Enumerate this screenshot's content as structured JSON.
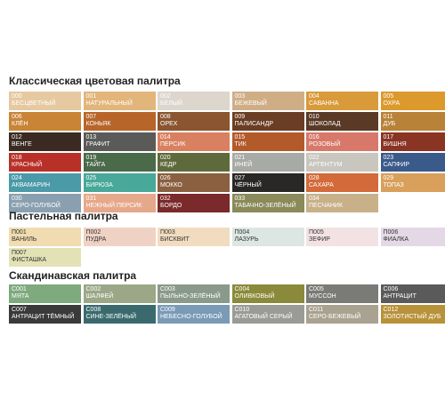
{
  "sections": [
    {
      "title": "Классическая цветовая палитра",
      "text_color": "#ffffff",
      "swatches": [
        {
          "code": "000",
          "name": "БЕСЦВЕТНЫЙ",
          "color": "#e6c9a0"
        },
        {
          "code": "001",
          "name": "НАТУРАЛЬНЫЙ",
          "color": "#e2b57a"
        },
        {
          "code": "002",
          "name": "БЕЛЫЙ",
          "color": "#dcd6cc"
        },
        {
          "code": "003",
          "name": "БЕЖЕВЫЙ",
          "color": "#cfae86"
        },
        {
          "code": "004",
          "name": "САВАННА",
          "color": "#d99a3a"
        },
        {
          "code": "005",
          "name": "ОХРА",
          "color": "#dc9a2c"
        },
        {
          "code": "006",
          "name": "КЛЁН",
          "color": "#c98436"
        },
        {
          "code": "007",
          "name": "КОНЬЯК",
          "color": "#b8652a"
        },
        {
          "code": "008",
          "name": "ОРЕХ",
          "color": "#8a5530"
        },
        {
          "code": "009",
          "name": "ПАЛИСАНДР",
          "color": "#6a3e24"
        },
        {
          "code": "010",
          "name": "ШОКОЛАД",
          "color": "#5a3a26"
        },
        {
          "code": "011",
          "name": "ДУБ",
          "color": "#b88238"
        },
        {
          "code": "012",
          "name": "ВЕНГЕ",
          "color": "#3a2a22"
        },
        {
          "code": "013",
          "name": "ГРАФИТ",
          "color": "#5a5a58"
        },
        {
          "code": "014",
          "name": "ПЕРСИК",
          "color": "#d98060"
        },
        {
          "code": "015",
          "name": "ТИК",
          "color": "#b25a2a"
        },
        {
          "code": "016",
          "name": "РОЗОВЫЙ",
          "color": "#d8786a"
        },
        {
          "code": "017",
          "name": "ВИШНЯ",
          "color": "#8a3424"
        },
        {
          "code": "018",
          "name": "КРАСНЫЙ",
          "color": "#b83028"
        },
        {
          "code": "019",
          "name": "ТАЙГА",
          "color": "#4a6a4a"
        },
        {
          "code": "020",
          "name": "КЕДР",
          "color": "#5e6a3c"
        },
        {
          "code": "021",
          "name": "ИНЕЙ",
          "color": "#a8aaa6"
        },
        {
          "code": "022",
          "name": "АРГЕНТУМ",
          "color": "#c8c6be"
        },
        {
          "code": "023",
          "name": "САПФИР",
          "color": "#3a5a8a"
        },
        {
          "code": "024",
          "name": "АКВАМАРИН",
          "color": "#4a9aa8"
        },
        {
          "code": "025",
          "name": "БИРЮЗА",
          "color": "#48a89a"
        },
        {
          "code": "026",
          "name": "МОККО",
          "color": "#8a6040"
        },
        {
          "code": "027",
          "name": "ЧЁРНЫЙ",
          "color": "#2a2826"
        },
        {
          "code": "028",
          "name": "САХАРА",
          "color": "#d26a3a"
        },
        {
          "code": "029",
          "name": "ТОПАЗ",
          "color": "#d8a05a"
        },
        {
          "code": "030",
          "name": "СЕРО-ГОЛУБОЙ",
          "color": "#8aa0b0"
        },
        {
          "code": "031",
          "name": "НЕЖНЫЙ ПЕРСИК",
          "color": "#e6a88a"
        },
        {
          "code": "032",
          "name": "БОРДО",
          "color": "#7a2a2a"
        },
        {
          "code": "033",
          "name": "ТАБАЧНО-ЗЕЛЁНЫЙ",
          "color": "#8a8a5a"
        },
        {
          "code": "034",
          "name": "ПЕСЧАНИК",
          "color": "#c8b088"
        }
      ]
    },
    {
      "title": "Пастельная палитра",
      "text_color": "#333333",
      "swatches": [
        {
          "code": "П001",
          "name": "ВАНИЛЬ",
          "color": "#f0dcb0"
        },
        {
          "code": "П002",
          "name": "ПУДРА",
          "color": "#f0d2c4"
        },
        {
          "code": "П003",
          "name": "БИСКВИТ",
          "color": "#f2dcc0"
        },
        {
          "code": "П004",
          "name": "ЛАЗУРЬ",
          "color": "#dce6e2"
        },
        {
          "code": "П005",
          "name": "ЗЕФИР",
          "color": "#f2e2e4"
        },
        {
          "code": "П006",
          "name": "ФИАЛКА",
          "color": "#e4d8e6"
        },
        {
          "code": "П007",
          "name": "ФИСТАШКА",
          "color": "#e2e2b6"
        }
      ]
    },
    {
      "title": "Скандинавская палитра",
      "text_color": "#ffffff",
      "swatches": [
        {
          "code": "С001",
          "name": "МЯТА",
          "color": "#7eaa7e"
        },
        {
          "code": "С002",
          "name": "ШАЛФЕЙ",
          "color": "#9aa888"
        },
        {
          "code": "С003",
          "name": "ПЫЛЬНО-ЗЕЛЁНЫЙ",
          "color": "#8a9a8a"
        },
        {
          "code": "С004",
          "name": "ОЛИВКОВЫЙ",
          "color": "#8a8a3a"
        },
        {
          "code": "С005",
          "name": "МУССОН",
          "color": "#7a7a76"
        },
        {
          "code": "С006",
          "name": "АНТРАЦИТ",
          "color": "#5a5a5a"
        },
        {
          "code": "С007",
          "name": "АНТРАЦИТ ТЁМНЫЙ",
          "color": "#3a3a3a"
        },
        {
          "code": "С008",
          "name": "СИНЕ-ЗЕЛЁНЫЙ",
          "color": "#3a6a6e"
        },
        {
          "code": "С009",
          "name": "НЕБЕСНО-ГОЛУБОЙ",
          "color": "#7a9ab6"
        },
        {
          "code": "С010",
          "name": "АГАТОВЫЙ СЕРЫЙ",
          "color": "#9a9a96"
        },
        {
          "code": "С011",
          "name": "СЕРО-БЕЖЕВЫЙ",
          "color": "#aaa290"
        },
        {
          "code": "С012",
          "name": "ЗОЛОТИСТЫЙ ДУБ",
          "color": "#b8923a"
        }
      ]
    }
  ]
}
